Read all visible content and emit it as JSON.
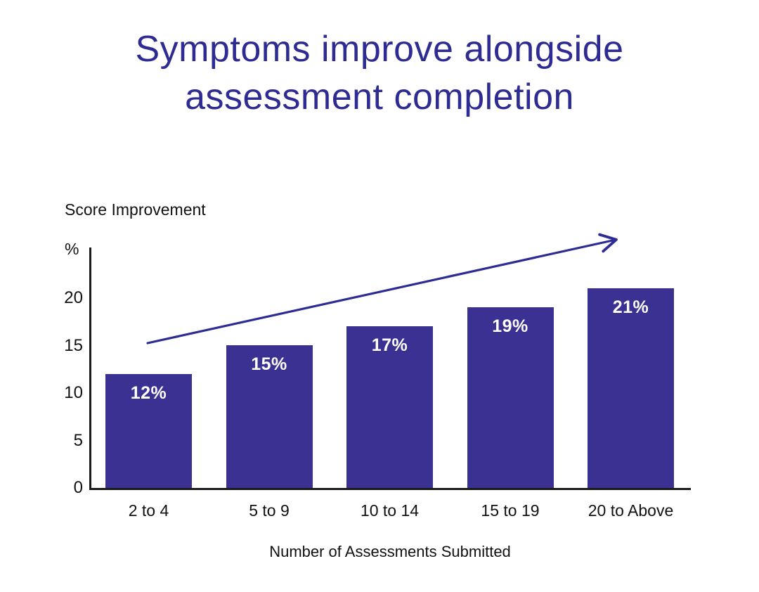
{
  "title": "Symptoms improve alongside assessment completion",
  "colors": {
    "title": "#2E2B92",
    "bar": "#3A3193",
    "bar_label": "#FFFFFF",
    "trend_arrow": "#2E2C94",
    "axis": "#1A1A1A"
  },
  "chart_data": {
    "type": "bar",
    "title": "Symptoms improve alongside assessment completion",
    "categories": [
      "2 to 4",
      "5 to 9",
      "10 to 14",
      "15 to 19",
      "20 to Above"
    ],
    "values": [
      12,
      15,
      17,
      19,
      21
    ],
    "bar_labels": [
      "12%",
      "15%",
      "17%",
      "19%",
      "21%"
    ],
    "xlabel": "Number of Assessments Submitted",
    "ylabel": "Score Improvement",
    "y_unit": "%",
    "yticks": [
      0,
      5,
      10,
      15,
      20
    ],
    "ylim": [
      0,
      25.4
    ],
    "grid": false,
    "legend_position": "none",
    "annotations": [
      "upward trend arrow above bars"
    ]
  }
}
